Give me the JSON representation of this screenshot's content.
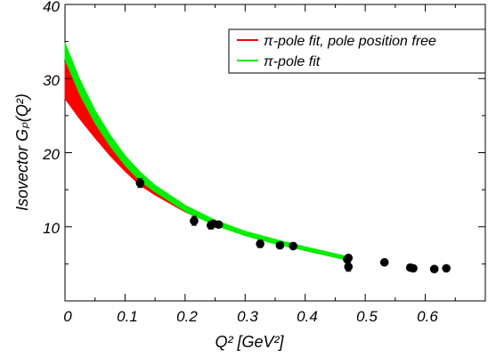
{
  "chart_data": {
    "type": "scatter",
    "xlabel": "Q² [GeV²]",
    "ylabel": "Isovector Gₚ(Q²)",
    "xlim": [
      0,
      0.7
    ],
    "ylim": [
      0,
      40
    ],
    "x_ticks": [
      "0",
      "0.1",
      "0.2",
      "0.3",
      "0.4",
      "0.5",
      "0.6"
    ],
    "y_ticks": [
      "10",
      "20",
      "30",
      "40"
    ],
    "grid": false,
    "legend_position": "top-right",
    "series": [
      {
        "name": "π-pole fit, pole position free",
        "kind": "band",
        "color": "#ff0000",
        "x": [
          0,
          0.025,
          0.05,
          0.075,
          0.1,
          0.125,
          0.15,
          0.2,
          0.25,
          0.3,
          0.35,
          0.4,
          0.47
        ],
        "lower": [
          27.3,
          24.5,
          22.0,
          19.6,
          17.5,
          15.6,
          14.3,
          12.0,
          10.3,
          8.9,
          7.8,
          6.8,
          5.5
        ],
        "upper": [
          32.2,
          28.3,
          25.0,
          21.8,
          19.2,
          16.9,
          15.3,
          12.7,
          10.8,
          9.3,
          8.2,
          7.2,
          5.9
        ]
      },
      {
        "name": "π-pole fit",
        "kind": "band",
        "color": "#00ee00",
        "x": [
          0,
          0.025,
          0.05,
          0.075,
          0.1,
          0.125,
          0.15,
          0.2,
          0.25,
          0.3,
          0.35,
          0.4,
          0.47
        ],
        "lower": [
          32.6,
          27.8,
          24.0,
          20.9,
          18.3,
          16.2,
          14.7,
          12.1,
          10.2,
          8.8,
          7.7,
          6.8,
          5.5
        ],
        "upper": [
          34.8,
          29.8,
          25.7,
          22.4,
          19.6,
          17.4,
          15.6,
          12.9,
          10.9,
          9.4,
          8.3,
          7.3,
          6.0
        ]
      },
      {
        "name": "",
        "kind": "points",
        "color": "#000000",
        "x": [
          0.125,
          0.215,
          0.243,
          0.247,
          0.256,
          0.325,
          0.358,
          0.38,
          0.47,
          0.472,
          0.472,
          0.532,
          0.575,
          0.58,
          0.615,
          0.635
        ],
        "y": [
          15.9,
          10.8,
          10.2,
          10.4,
          10.3,
          7.7,
          7.5,
          7.4,
          5.6,
          4.6,
          5.8,
          5.2,
          4.5,
          4.4,
          4.3,
          4.4
        ],
        "err": [
          0.6,
          0.6,
          0.5,
          0.4,
          0.4,
          0.5,
          0.4,
          0.4,
          0.4,
          0.6,
          0.3,
          0.4,
          0.4,
          0.4,
          0.4,
          0.4
        ]
      }
    ]
  }
}
